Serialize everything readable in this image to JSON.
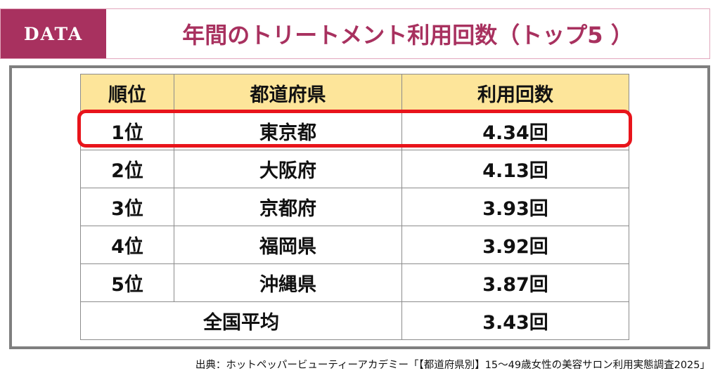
{
  "header": {
    "tag": "DATA",
    "title": "年間のトリートメント利用回数（トップ5 ）"
  },
  "table": {
    "headers": [
      "順位",
      "都道府県",
      "利用回数"
    ],
    "rows": [
      {
        "rank": "1位",
        "prefecture": "東京都",
        "count": "4.34回"
      },
      {
        "rank": "2位",
        "prefecture": "大阪府",
        "count": "4.13回"
      },
      {
        "rank": "3位",
        "prefecture": "京都府",
        "count": "3.93回"
      },
      {
        "rank": "4位",
        "prefecture": "福岡県",
        "count": "3.92回"
      },
      {
        "rank": "5位",
        "prefecture": "沖縄県",
        "count": "3.87回"
      }
    ],
    "average": {
      "label": "全国平均",
      "count": "3.43回"
    }
  },
  "source": "出典：ホットペッパービューティーアカデミー「【都道府県別】15～49歳女性の美容サロン利用実態調査2025」",
  "colors": {
    "accent": "#a8315f",
    "header_fill": "#fde59a",
    "highlight": "#e8141b",
    "frame": "#7f7f7f"
  }
}
